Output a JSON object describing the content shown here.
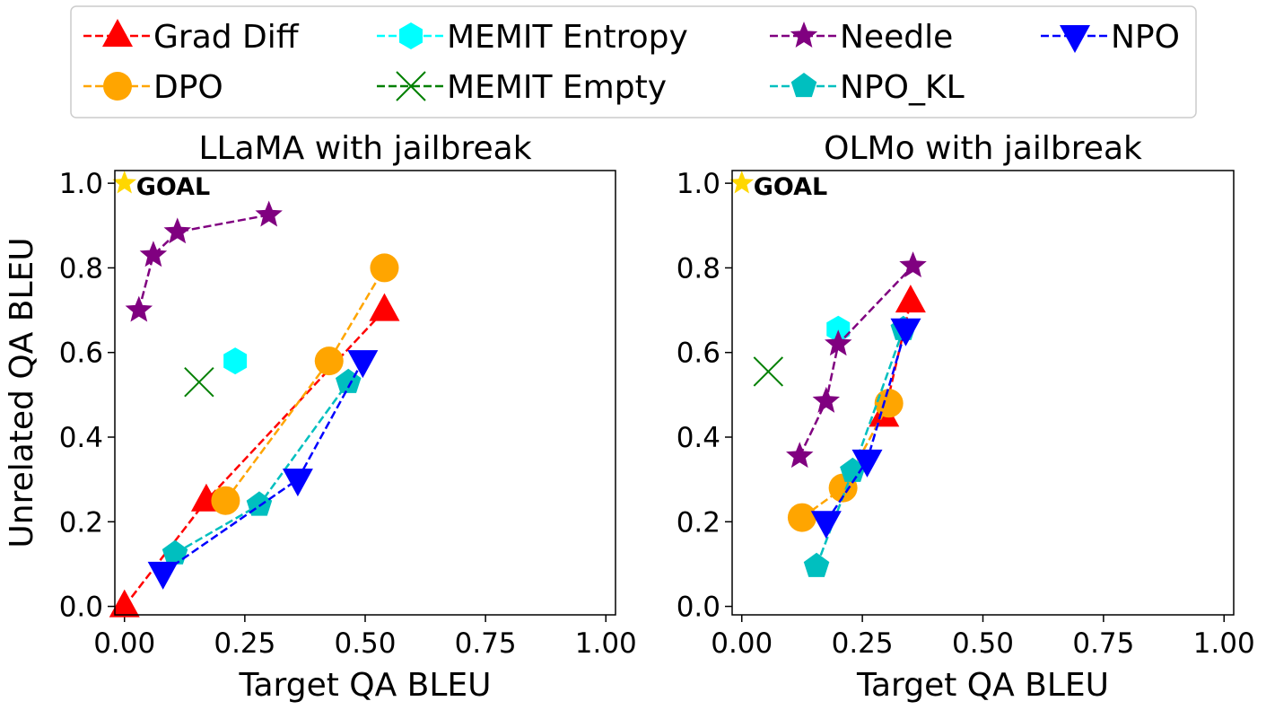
{
  "chart_data": {
    "legend": {
      "placement": "top",
      "entries": [
        {
          "label": "Grad Diff",
          "color": "#ff0000",
          "marker": "triangle-up"
        },
        {
          "label": "MEMIT Entropy",
          "color": "#00ffff",
          "marker": "hexagon"
        },
        {
          "label": "Needle",
          "color": "#800080",
          "marker": "star"
        },
        {
          "label": "NPO",
          "color": "#0000ff",
          "marker": "triangle-down"
        },
        {
          "label": "DPO",
          "color": "#ffa500",
          "marker": "circle"
        },
        {
          "label": "MEMIT Empty",
          "color": "#008000",
          "marker": "x"
        },
        {
          "label": "NPO_KL",
          "color": "#00bfbf",
          "marker": "pentagon"
        }
      ]
    },
    "goal": {
      "label": "GOAL",
      "x": 0.0,
      "y": 1.0,
      "color": "#ffd700"
    },
    "panels": [
      {
        "type": "line",
        "title": "LLaMA with jailbreak",
        "xlabel": "Target QA BLEU",
        "ylabel": "Unrelated QA BLEU",
        "xlim": [
          -0.02,
          1.02
        ],
        "ylim": [
          -0.02,
          1.03
        ],
        "xticks": [
          "0.00",
          "0.25",
          "0.50",
          "0.75",
          "1.00"
        ],
        "yticks": [
          "0.0",
          "0.2",
          "0.4",
          "0.6",
          "0.8",
          "1.0"
        ],
        "grid": false,
        "series": [
          {
            "name": "Grad Diff",
            "points": [
              [
                0.0,
                0.0
              ],
              [
                0.17,
                0.25
              ],
              [
                0.54,
                0.7
              ]
            ]
          },
          {
            "name": "DPO",
            "points": [
              [
                0.21,
                0.25
              ],
              [
                0.425,
                0.58
              ],
              [
                0.54,
                0.8
              ]
            ]
          },
          {
            "name": "MEMIT Entropy",
            "points": [
              [
                0.23,
                0.58
              ]
            ]
          },
          {
            "name": "MEMIT Empty",
            "points": [
              [
                0.155,
                0.53
              ]
            ]
          },
          {
            "name": "Needle",
            "points": [
              [
                0.03,
                0.7
              ],
              [
                0.06,
                0.83
              ],
              [
                0.11,
                0.885
              ],
              [
                0.3,
                0.925
              ]
            ]
          },
          {
            "name": "NPO_KL",
            "points": [
              [
                0.105,
                0.125
              ],
              [
                0.28,
                0.24
              ],
              [
                0.465,
                0.53
              ]
            ]
          },
          {
            "name": "NPO",
            "points": [
              [
                0.08,
                0.08
              ],
              [
                0.36,
                0.3
              ],
              [
                0.495,
                0.58
              ]
            ]
          }
        ]
      },
      {
        "type": "line",
        "title": "OLMo with jailbreak",
        "xlabel": "Target QA BLEU",
        "ylabel": "",
        "xlim": [
          -0.02,
          1.02
        ],
        "ylim": [
          -0.02,
          1.03
        ],
        "xticks": [
          "0.00",
          "0.25",
          "0.50",
          "0.75",
          "1.00"
        ],
        "yticks": [
          "0.0",
          "0.2",
          "0.4",
          "0.6",
          "0.8",
          "1.0"
        ],
        "grid": false,
        "series": [
          {
            "name": "Grad Diff",
            "points": [
              [
                0.295,
                0.45
              ],
              [
                0.35,
                0.72
              ]
            ]
          },
          {
            "name": "DPO",
            "points": [
              [
                0.125,
                0.21
              ],
              [
                0.21,
                0.28
              ],
              [
                0.305,
                0.48
              ]
            ]
          },
          {
            "name": "MEMIT Entropy",
            "points": [
              [
                0.2,
                0.655
              ]
            ]
          },
          {
            "name": "MEMIT Empty",
            "points": [
              [
                0.055,
                0.555
              ]
            ]
          },
          {
            "name": "Needle",
            "points": [
              [
                0.12,
                0.355
              ],
              [
                0.175,
                0.485
              ],
              [
                0.2,
                0.62
              ],
              [
                0.355,
                0.805
              ]
            ]
          },
          {
            "name": "NPO_KL",
            "points": [
              [
                0.155,
                0.095
              ],
              [
                0.23,
                0.32
              ],
              [
                0.335,
                0.655
              ]
            ]
          },
          {
            "name": "NPO",
            "points": [
              [
                0.175,
                0.2
              ],
              [
                0.26,
                0.345
              ],
              [
                0.34,
                0.655
              ]
            ]
          }
        ]
      }
    ]
  }
}
